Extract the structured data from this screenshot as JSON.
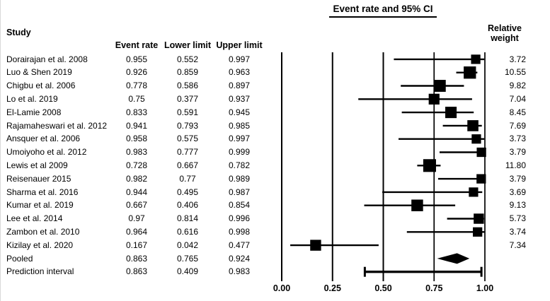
{
  "chart_data": {
    "type": "forest",
    "title": "Event rate and 95% CI",
    "columns": {
      "study": "Study",
      "event_rate": "Event rate",
      "lower": "Lower limit",
      "upper": "Upper limit",
      "relative_weight": "Relative\nweight"
    },
    "axis": {
      "range": [
        0,
        1
      ],
      "ticks": [
        0,
        0.25,
        0.5,
        0.75,
        1
      ],
      "tick_labels": [
        "0.00",
        "0.25",
        "0.50",
        "0.75",
        "1.00"
      ]
    },
    "rows": [
      {
        "study": "Dorairajan et al. 2008",
        "event_rate": "0.955",
        "lower": "0.552",
        "upper": "0.997",
        "weight": "3.72",
        "marker": "square"
      },
      {
        "study": "Luo & Shen 2019",
        "event_rate": "0.926",
        "lower": "0.859",
        "upper": "0.963",
        "weight": "10.55",
        "marker": "square"
      },
      {
        "study": "Chigbu et al. 2006",
        "event_rate": "0.778",
        "lower": "0.586",
        "upper": "0.897",
        "weight": "9.82",
        "marker": "square"
      },
      {
        "study": "Lo et al. 2019",
        "event_rate": "0.75",
        "lower": "0.377",
        "upper": "0.937",
        "weight": "7.04",
        "marker": "square"
      },
      {
        "study": "El-Lamie 2008",
        "event_rate": "0.833",
        "lower": "0.591",
        "upper": "0.945",
        "weight": "8.45",
        "marker": "square"
      },
      {
        "study": "Rajamaheswari et al. 2012",
        "event_rate": "0.941",
        "lower": "0.793",
        "upper": "0.985",
        "weight": "7.69",
        "marker": "square"
      },
      {
        "study": "Ansquer et al. 2006",
        "event_rate": "0.958",
        "lower": "0.575",
        "upper": "0.997",
        "weight": "3.73",
        "marker": "square"
      },
      {
        "study": "Umoiyoho et al. 2012",
        "event_rate": "0.983",
        "lower": "0.777",
        "upper": "0.999",
        "weight": "3.79",
        "marker": "square"
      },
      {
        "study": "Lewis et al 2009",
        "event_rate": "0.728",
        "lower": "0.667",
        "upper": "0.782",
        "weight": "11.80",
        "marker": "square"
      },
      {
        "study": "Reisenauer 2015",
        "event_rate": "0.982",
        "lower": "0.77",
        "upper": "0.989",
        "weight": "3.79",
        "marker": "square"
      },
      {
        "study": "Sharma et al. 2016",
        "event_rate": "0.944",
        "lower": "0.495",
        "upper": "0.987",
        "weight": "3.69",
        "marker": "square"
      },
      {
        "study": "Kumar et al. 2019",
        "event_rate": "0.667",
        "lower": "0.406",
        "upper": "0.854",
        "weight": "9.13",
        "marker": "square"
      },
      {
        "study": "Lee et al. 2014",
        "event_rate": "0.97",
        "lower": "0.814",
        "upper": "0.996",
        "weight": "5.73",
        "marker": "square"
      },
      {
        "study": "Zambon et al. 2010",
        "event_rate": "0.964",
        "lower": "0.616",
        "upper": "0.998",
        "weight": "3.74",
        "marker": "square"
      },
      {
        "study": "Kizilay et al. 2020",
        "event_rate": "0.167",
        "lower": "0.042",
        "upper": "0.477",
        "weight": "7.34",
        "marker": "square"
      },
      {
        "study": "Pooled",
        "event_rate": "0.863",
        "lower": "0.765",
        "upper": "0.924",
        "weight": "",
        "marker": "diamond"
      },
      {
        "study": "Prediction interval",
        "event_rate": "0.863",
        "lower": "0.409",
        "upper": "0.983",
        "weight": "",
        "marker": "capped-line"
      }
    ]
  }
}
